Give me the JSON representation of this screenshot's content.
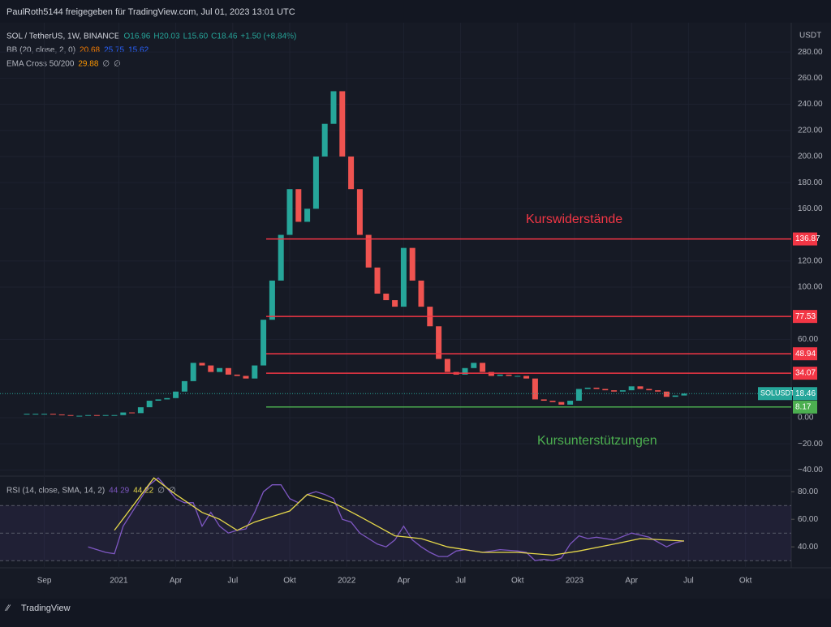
{
  "header": {
    "author_line": "PaulRoth5144 freigegeben für TradingView.com, Jul 01, 2023 13:01 UTC",
    "footer": "TradingView"
  },
  "chart_data": [
    {
      "type": "candlestick",
      "title": "SOL / TetherUS, 1W, BINANCE",
      "ohlc_labels": [
        "O16.96",
        "H20.03",
        "L15.60",
        "C18.46",
        "+1.50 (+8.84%)"
      ],
      "indicators": [
        {
          "name": "BB (20, close, 2, 0)",
          "values": [
            "20.68",
            "25.75",
            "15.62"
          ]
        },
        {
          "name": "EMA Cross 50/200",
          "values": [
            "29.88",
            "∅",
            "∅"
          ]
        }
      ],
      "unit": "USDT",
      "symbol": "SOLUSDT",
      "x": [
        0,
        2,
        4,
        6,
        8,
        10,
        12,
        14,
        16,
        18,
        20,
        22,
        24,
        26,
        28,
        30,
        32,
        34,
        36,
        38,
        40,
        42,
        44,
        46,
        48,
        50,
        52,
        54,
        56,
        58,
        60,
        62,
        64,
        66,
        68,
        70,
        72,
        74,
        76,
        78,
        80,
        82,
        84,
        86,
        88,
        90,
        92,
        94,
        96,
        98,
        100,
        102,
        104,
        106,
        108,
        110,
        112,
        114,
        116,
        118,
        120,
        122,
        124,
        126,
        128,
        130,
        132,
        134,
        136,
        138,
        140,
        142,
        144,
        146,
        148,
        150
      ],
      "values": [
        3,
        3,
        3,
        2.5,
        2,
        1.5,
        1.5,
        2,
        1.5,
        2,
        2,
        4,
        3.5,
        8,
        13,
        14,
        15,
        20,
        28,
        42,
        40,
        35,
        38,
        33,
        32,
        30,
        40,
        75,
        105,
        140,
        175,
        150,
        160,
        200,
        225,
        250,
        200,
        175,
        140,
        115,
        95,
        90,
        85,
        130,
        105,
        85,
        70,
        45,
        35,
        33,
        38,
        42,
        35,
        32,
        33,
        32,
        32,
        30,
        14,
        13,
        12,
        10,
        13,
        22,
        23,
        22,
        21,
        20,
        21,
        24,
        22,
        21,
        20,
        16,
        17,
        18.46
      ],
      "up_color": "#26a69a",
      "down_color": "#ef5350",
      "xlim": [
        -5,
        174
      ],
      "ylim": [
        -43.5,
        295
      ],
      "xticks": [
        {
          "value": 4,
          "label": "Sep"
        },
        {
          "value": 21,
          "label": "2021"
        },
        {
          "value": 34,
          "label": "Apr"
        },
        {
          "value": 47,
          "label": "Jul"
        },
        {
          "value": 60,
          "label": "Okt"
        },
        {
          "value": 73,
          "label": "2022"
        },
        {
          "value": 86,
          "label": "Apr"
        },
        {
          "value": 99,
          "label": "Jul"
        },
        {
          "value": 112,
          "label": "Okt"
        },
        {
          "value": 125,
          "label": "2023"
        },
        {
          "value": 138,
          "label": "Apr"
        },
        {
          "value": 151,
          "label": "Jul"
        },
        {
          "value": 164,
          "label": "Okt"
        }
      ],
      "yticks": [
        {
          "value": 280,
          "label": "280.00"
        },
        {
          "value": 260,
          "label": "260.00"
        },
        {
          "value": 240,
          "label": "240.00"
        },
        {
          "value": 220,
          "label": "220.00"
        },
        {
          "value": 200,
          "label": "200.00"
        },
        {
          "value": 180,
          "label": "180.00"
        },
        {
          "value": 160,
          "label": "160.00"
        },
        {
          "value": 120,
          "label": "120.00"
        },
        {
          "value": 100,
          "label": "100.00"
        },
        {
          "value": 60,
          "label": "60.00"
        },
        {
          "value": 0,
          "label": "0.00"
        },
        {
          "value": -20,
          "label": "−20.00"
        },
        {
          "value": -40,
          "label": "−40.00"
        }
      ],
      "levels": [
        {
          "value": 136.87,
          "color": "#f23645"
        },
        {
          "value": 77.53,
          "color": "#f23645"
        },
        {
          "value": 48.94,
          "color": "#f23645"
        },
        {
          "value": 34.07,
          "color": "#f23645"
        },
        {
          "value": 8.17,
          "color": "#4caf50"
        }
      ],
      "annotations": [
        {
          "text": "Kurswiderstände",
          "color": "#f23645"
        },
        {
          "text": "Kursunterstützungen",
          "color": "#4caf50"
        }
      ]
    },
    {
      "type": "line",
      "title": "RSI (14, close, SMA, 14, 2)",
      "legend_values": [
        "44.29",
        "44.22",
        "∅",
        "∅"
      ],
      "series": [
        {
          "name": "RSI",
          "color": "#7e57c2",
          "x": [
            14,
            18,
            20,
            22,
            24,
            26,
            28,
            30,
            34,
            36,
            38,
            40,
            42,
            44,
            46,
            48,
            50,
            52,
            54,
            56,
            58,
            60,
            62,
            64,
            66,
            68,
            70,
            72,
            74,
            76,
            78,
            80,
            82,
            84,
            86,
            88,
            90,
            92,
            94,
            96,
            98,
            100,
            104,
            108,
            112,
            114,
            116,
            118,
            120,
            122,
            124,
            126,
            128,
            130,
            134,
            138,
            142,
            146,
            148,
            150
          ],
          "values": [
            40,
            36,
            35,
            55,
            65,
            75,
            85,
            90,
            75,
            72,
            72,
            55,
            65,
            55,
            50,
            52,
            53,
            65,
            80,
            85,
            85,
            75,
            72,
            78,
            80,
            78,
            75,
            60,
            58,
            50,
            46,
            42,
            40,
            45,
            55,
            45,
            40,
            36,
            33,
            33,
            37,
            38,
            36,
            38,
            37,
            36,
            30,
            31,
            30,
            32,
            42,
            48,
            46,
            47,
            45,
            50,
            47,
            40,
            43,
            44.29
          ]
        },
        {
          "name": "SMA",
          "color": "#e6d84a",
          "x": [
            20,
            29,
            34,
            40,
            44,
            48,
            52,
            56,
            60,
            64,
            70,
            76,
            80,
            84,
            90,
            96,
            104,
            112,
            120,
            126,
            134,
            140,
            150
          ],
          "values": [
            52,
            90,
            78,
            65,
            60,
            52,
            58,
            62,
            66,
            78,
            72,
            62,
            55,
            48,
            46,
            40,
            36,
            36,
            34,
            37,
            42,
            46,
            44.22
          ]
        }
      ],
      "xlim": [
        -5,
        174
      ],
      "ylim": [
        26,
        90.7
      ],
      "yticks": [
        {
          "value": 80,
          "label": "80.00"
        },
        {
          "value": 60,
          "label": "60.00"
        },
        {
          "value": 40,
          "label": "40.00"
        }
      ],
      "bands": [
        70,
        50,
        30
      ]
    }
  ]
}
